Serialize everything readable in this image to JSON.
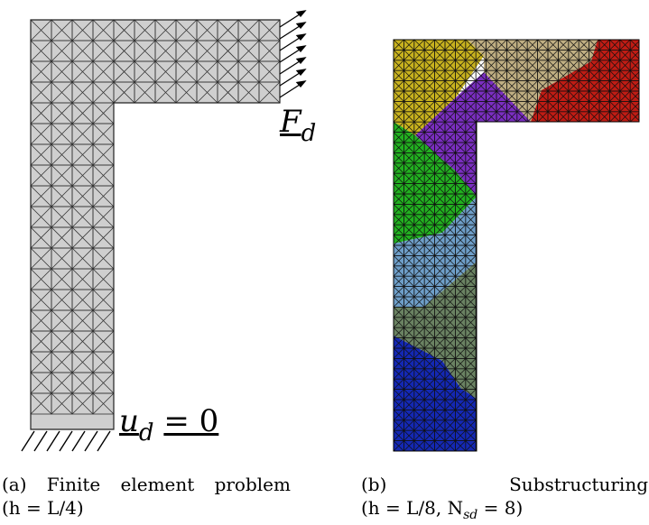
{
  "figure_a": {
    "load_label": "F",
    "load_subscript": "d",
    "bc_label_main": "u",
    "bc_label_sub": "d",
    "bc_label_rhs": "= 0",
    "caption_tag": "(a)",
    "caption_words": [
      "Finite",
      "element",
      "problem"
    ],
    "caption_line2": "(h =  L/4)"
  },
  "figure_b": {
    "caption_tag": "(b)",
    "caption_word": "Substructuring",
    "caption_line2": "(h =  L/8, N",
    "caption_sub": "sd",
    "caption_tail": " = 8)",
    "n_subdomains": "8",
    "colors": [
      "#c8b21e",
      "#bfae82",
      "#c01c14",
      "#7a2ec0",
      "#22b020",
      "#6e9ec8",
      "#6a8262",
      "#1428b4"
    ]
  }
}
